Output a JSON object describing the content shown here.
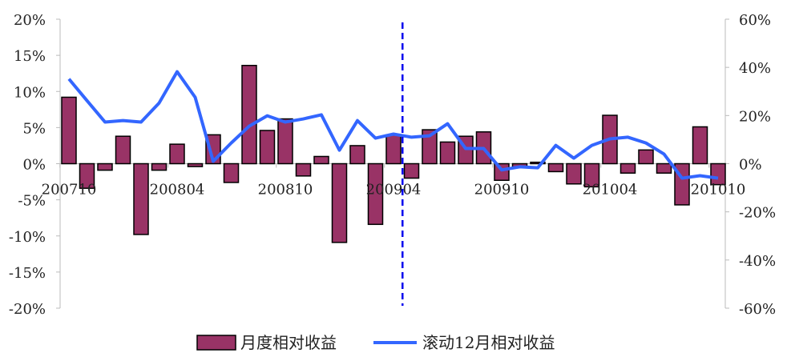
{
  "chart_data": {
    "type": "bar+line",
    "categories": [
      "200710",
      "200711",
      "200712",
      "200801",
      "200802",
      "200803",
      "200804",
      "200805",
      "200806",
      "200807",
      "200808",
      "200809",
      "200810",
      "200811",
      "200812",
      "200901",
      "200902",
      "200903",
      "200904",
      "200905",
      "200906",
      "200907",
      "200908",
      "200909",
      "200910",
      "200911",
      "200912",
      "201001",
      "201002",
      "201003",
      "201004",
      "201005",
      "201006",
      "201007",
      "201008",
      "201009",
      "201010"
    ],
    "tick_labels": [
      "200710",
      "200804",
      "200810",
      "200904",
      "200910",
      "201004",
      "201010"
    ],
    "series": [
      {
        "name": "月度相对收益",
        "type": "bar",
        "axis": "left",
        "color": "#993366",
        "values": [
          9.2,
          -3.4,
          -0.9,
          3.8,
          -9.8,
          -0.9,
          2.7,
          -0.4,
          4.0,
          -2.6,
          13.6,
          4.6,
          6.2,
          -1.7,
          1.0,
          -10.9,
          2.5,
          -8.4,
          4.0,
          -2.0,
          4.7,
          3.0,
          3.8,
          4.4,
          -2.3,
          -0.5,
          0.2,
          -1.1,
          -2.8,
          -3.2,
          6.7,
          -1.3,
          1.9,
          -1.3,
          -5.7,
          5.1,
          -2.9
        ]
      },
      {
        "name": "滚动12月相对收益",
        "type": "line",
        "axis": "right",
        "color": "#3366FF",
        "values": [
          35.2,
          26.2,
          17.3,
          17.9,
          17.3,
          25.2,
          38.2,
          27.6,
          1.0,
          8.6,
          15.6,
          19.9,
          17.3,
          18.6,
          20.3,
          5.6,
          17.9,
          10.6,
          12.3,
          11.0,
          11.6,
          16.6,
          6.3,
          6.3,
          -2.6,
          -1.3,
          -1.7,
          7.6,
          2.3,
          7.6,
          10.3,
          11.0,
          8.6,
          4.0,
          -6.0,
          -5.0,
          -6.0
        ]
      }
    ],
    "y_left": {
      "range": [
        -20,
        20
      ],
      "ticks": [
        "20%",
        "15%",
        "10%",
        "5%",
        "0%",
        "-5%",
        "-10%",
        "-15%",
        "-20%"
      ]
    },
    "y_right": {
      "range": [
        -60,
        60
      ],
      "ticks": [
        "60%",
        "40%",
        "20%",
        "0%",
        "-20%",
        "-40%",
        "-60%"
      ]
    },
    "annotation": {
      "type": "vertical-dashed-line",
      "between": [
        "200904",
        "200905"
      ],
      "color": "#0000EE"
    },
    "grid": false,
    "legend": "bottom"
  }
}
